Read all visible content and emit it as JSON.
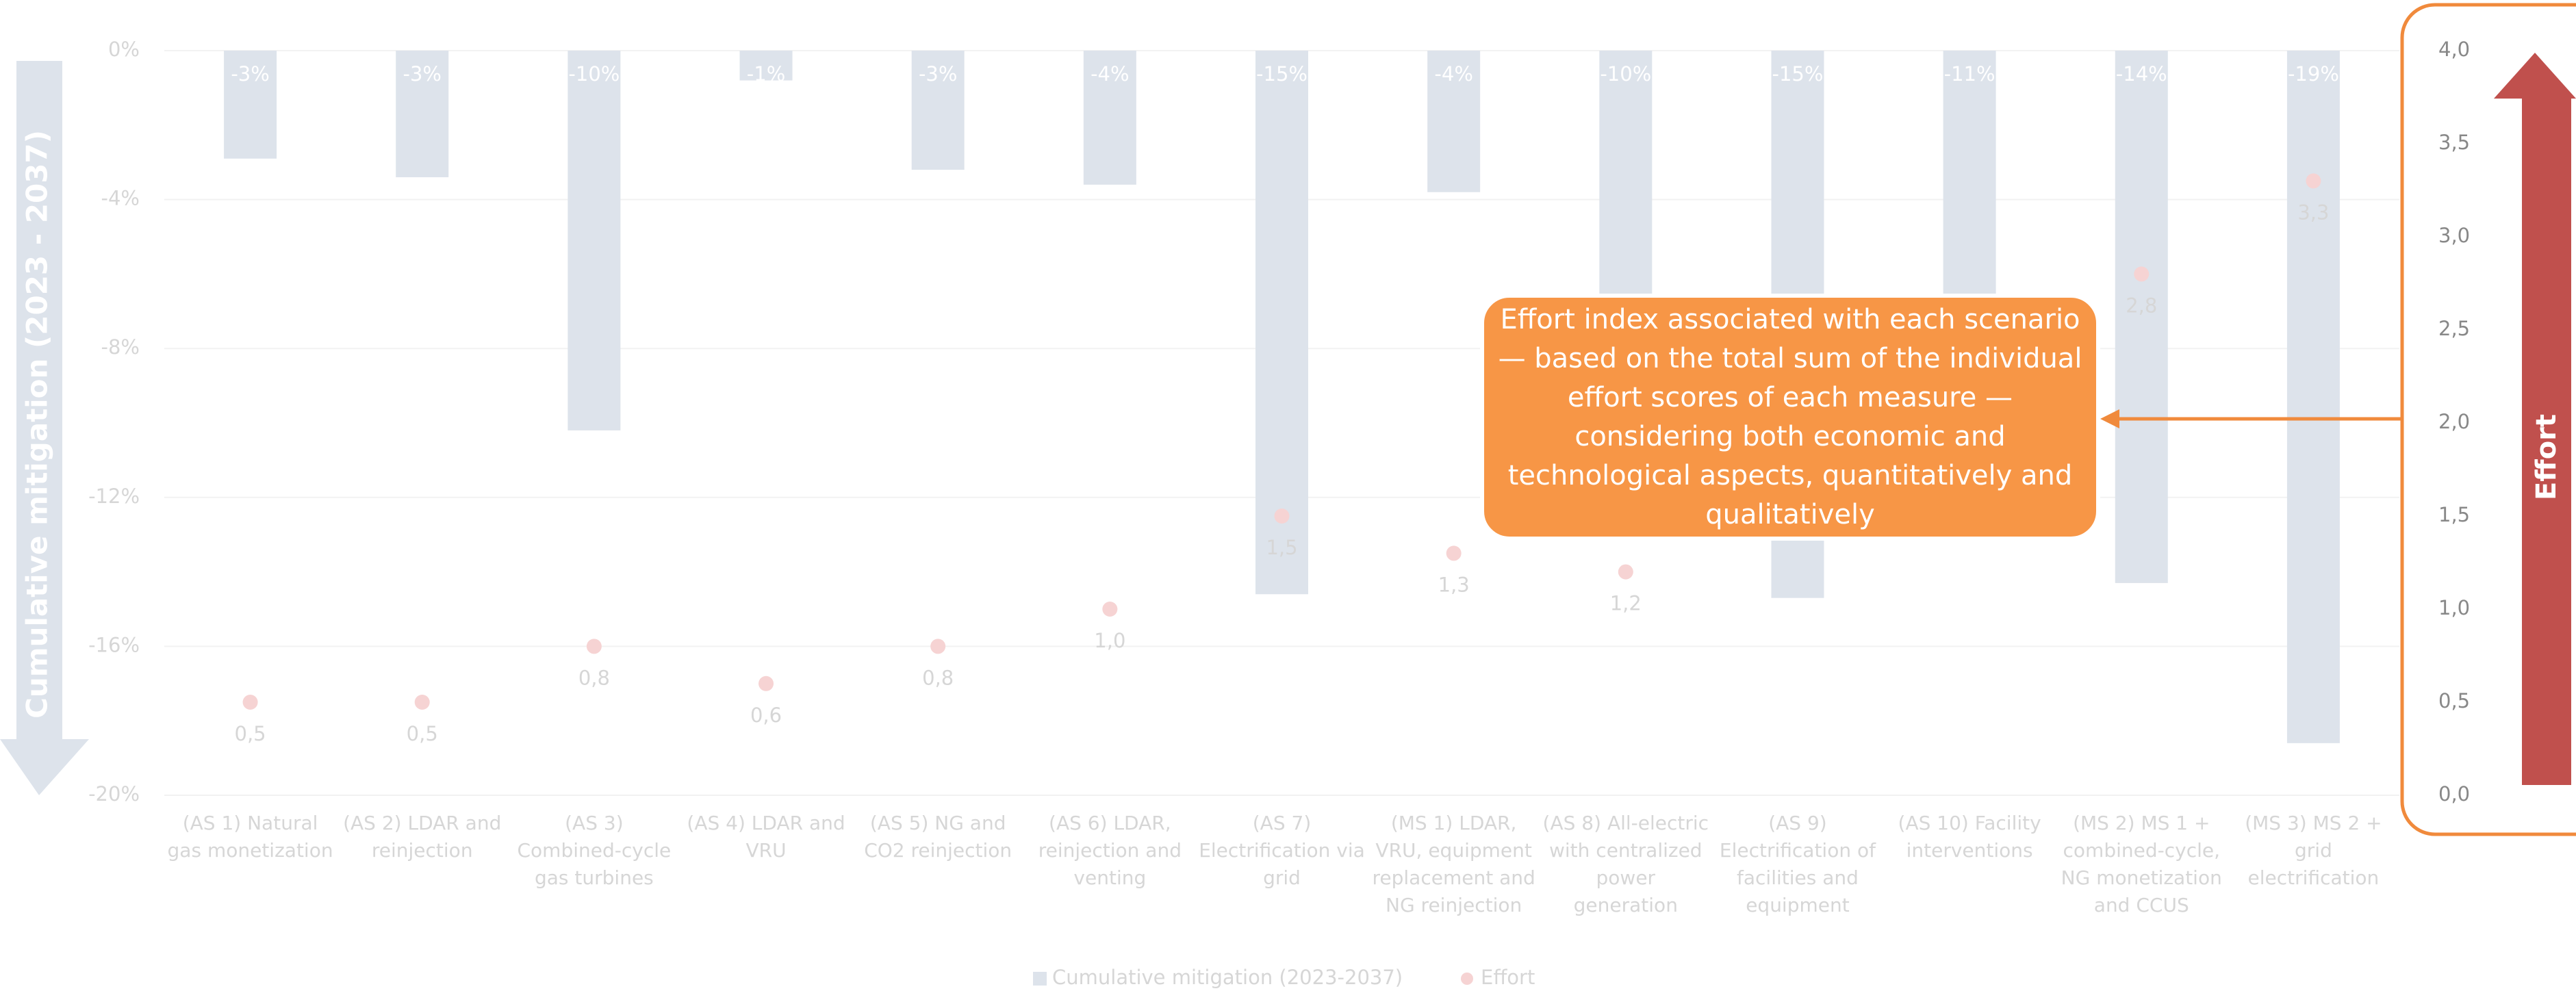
{
  "chart_data": {
    "type": "bar",
    "categories": [
      "(AS 1) Natural gas monetization",
      "(AS 2) LDAR and reinjection",
      "(AS 3) Combined-cycle gas turbines",
      "(AS 4) LDAR and VRU",
      "(AS 5) NG and CO2 reinjection",
      "(AS 6) LDAR, reinjection and venting",
      "(AS 7) Electrification via grid",
      "(MS 1) LDAR, VRU, equipment replacement and NG reinjection",
      "(AS 8) All-electric with centralized power generation",
      "(AS 9) Electrification of facilities and equipment",
      "(AS 10) Facility interventions",
      "(MS 2) MS 1 + combined-cycle, NG monetization and CCUS",
      "(MS 3) MS 2 + grid electrification"
    ],
    "series": [
      {
        "name": "Cumulative mitigation (2023-2037)",
        "type": "bar",
        "color": "#dde3eb",
        "values": [
          -2.9,
          -3.4,
          -10.2,
          -0.8,
          -3.2,
          -3.6,
          -14.6,
          -3.8,
          -10.2,
          -14.7,
          -11,
          -14.3,
          -18.6
        ],
        "value_labels": [
          "-3%",
          "-3%",
          "-10%",
          "-1%",
          "-3%",
          "-4%",
          "-15%",
          "-4%",
          "-10%",
          "-15%",
          "-11%",
          "-14%",
          "-19%"
        ]
      },
      {
        "name": "Effort",
        "type": "scatter",
        "axis": "y2",
        "color": "#f6d3d3",
        "values": [
          0.5,
          0.5,
          0.8,
          0.6,
          0.8,
          1.0,
          1.5,
          1.3,
          1.2,
          null,
          null,
          2.8,
          3.3
        ],
        "value_labels": [
          "0,5",
          "0,5",
          "0,8",
          "0,6",
          "0,8",
          "1,0",
          "1,5",
          "1,3",
          "1,2",
          null,
          null,
          "2,8",
          "3,3"
        ]
      }
    ],
    "y_label": "Cumulative mitigation (2023 - 2037)",
    "y2_label": "Effort",
    "annotation": "Effort index associated with each scenario — based on the total sum of the individual effort scores of each measure — considering both economic and technological aspects, quantitatively and qualitatively",
    "ylim": [
      -20,
      0
    ],
    "yticks": [
      {
        "value": 0,
        "label": "0%"
      },
      {
        "value": -4,
        "label": "-4%"
      },
      {
        "value": -8,
        "label": "-8%"
      },
      {
        "value": -12,
        "label": "-12%"
      },
      {
        "value": -16,
        "label": "-16%"
      },
      {
        "value": -20,
        "label": "-20%"
      }
    ],
    "y2lim": [
      0,
      4
    ],
    "y2ticks": [
      {
        "value": 4,
        "label": "4,0"
      },
      {
        "value": 3.5,
        "label": "3,5"
      },
      {
        "value": 3,
        "label": "3,0"
      },
      {
        "value": 2.5,
        "label": "2,5"
      },
      {
        "value": 2,
        "label": "2,0"
      },
      {
        "value": 1.5,
        "label": "1,5"
      },
      {
        "value": 1,
        "label": "1,0"
      },
      {
        "value": 0.5,
        "label": "0,5"
      },
      {
        "value": 0,
        "label": "0,0"
      }
    ],
    "grid": true
  }
}
